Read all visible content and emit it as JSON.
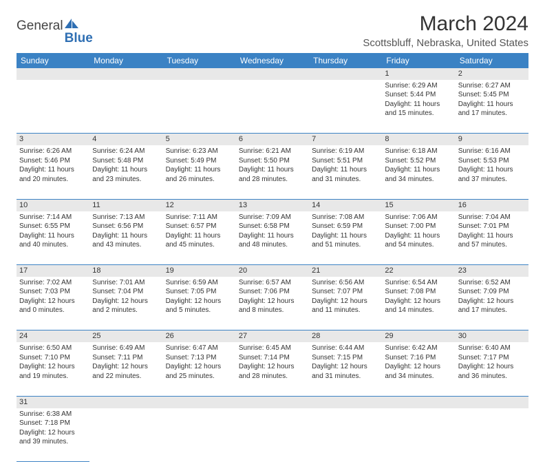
{
  "logo": {
    "part1": "General",
    "part2": "Blue"
  },
  "title": "March 2024",
  "location": "Scottsbluff, Nebraska, United States",
  "colors": {
    "header_bg": "#3b82c4",
    "header_text": "#ffffff",
    "daynum_bg": "#e8e8e8",
    "border": "#3b82c4",
    "text": "#333333",
    "logo_blue": "#2f6fb3"
  },
  "weekdays": [
    "Sunday",
    "Monday",
    "Tuesday",
    "Wednesday",
    "Thursday",
    "Friday",
    "Saturday"
  ],
  "weeks": [
    {
      "nums": [
        "",
        "",
        "",
        "",
        "",
        "1",
        "2"
      ],
      "cells": [
        null,
        null,
        null,
        null,
        null,
        {
          "sunrise": "Sunrise: 6:29 AM",
          "sunset": "Sunset: 5:44 PM",
          "daylight": "Daylight: 11 hours and 15 minutes."
        },
        {
          "sunrise": "Sunrise: 6:27 AM",
          "sunset": "Sunset: 5:45 PM",
          "daylight": "Daylight: 11 hours and 17 minutes."
        }
      ]
    },
    {
      "nums": [
        "3",
        "4",
        "5",
        "6",
        "7",
        "8",
        "9"
      ],
      "cells": [
        {
          "sunrise": "Sunrise: 6:26 AM",
          "sunset": "Sunset: 5:46 PM",
          "daylight": "Daylight: 11 hours and 20 minutes."
        },
        {
          "sunrise": "Sunrise: 6:24 AM",
          "sunset": "Sunset: 5:48 PM",
          "daylight": "Daylight: 11 hours and 23 minutes."
        },
        {
          "sunrise": "Sunrise: 6:23 AM",
          "sunset": "Sunset: 5:49 PM",
          "daylight": "Daylight: 11 hours and 26 minutes."
        },
        {
          "sunrise": "Sunrise: 6:21 AM",
          "sunset": "Sunset: 5:50 PM",
          "daylight": "Daylight: 11 hours and 28 minutes."
        },
        {
          "sunrise": "Sunrise: 6:19 AM",
          "sunset": "Sunset: 5:51 PM",
          "daylight": "Daylight: 11 hours and 31 minutes."
        },
        {
          "sunrise": "Sunrise: 6:18 AM",
          "sunset": "Sunset: 5:52 PM",
          "daylight": "Daylight: 11 hours and 34 minutes."
        },
        {
          "sunrise": "Sunrise: 6:16 AM",
          "sunset": "Sunset: 5:53 PM",
          "daylight": "Daylight: 11 hours and 37 minutes."
        }
      ]
    },
    {
      "nums": [
        "10",
        "11",
        "12",
        "13",
        "14",
        "15",
        "16"
      ],
      "cells": [
        {
          "sunrise": "Sunrise: 7:14 AM",
          "sunset": "Sunset: 6:55 PM",
          "daylight": "Daylight: 11 hours and 40 minutes."
        },
        {
          "sunrise": "Sunrise: 7:13 AM",
          "sunset": "Sunset: 6:56 PM",
          "daylight": "Daylight: 11 hours and 43 minutes."
        },
        {
          "sunrise": "Sunrise: 7:11 AM",
          "sunset": "Sunset: 6:57 PM",
          "daylight": "Daylight: 11 hours and 45 minutes."
        },
        {
          "sunrise": "Sunrise: 7:09 AM",
          "sunset": "Sunset: 6:58 PM",
          "daylight": "Daylight: 11 hours and 48 minutes."
        },
        {
          "sunrise": "Sunrise: 7:08 AM",
          "sunset": "Sunset: 6:59 PM",
          "daylight": "Daylight: 11 hours and 51 minutes."
        },
        {
          "sunrise": "Sunrise: 7:06 AM",
          "sunset": "Sunset: 7:00 PM",
          "daylight": "Daylight: 11 hours and 54 minutes."
        },
        {
          "sunrise": "Sunrise: 7:04 AM",
          "sunset": "Sunset: 7:01 PM",
          "daylight": "Daylight: 11 hours and 57 minutes."
        }
      ]
    },
    {
      "nums": [
        "17",
        "18",
        "19",
        "20",
        "21",
        "22",
        "23"
      ],
      "cells": [
        {
          "sunrise": "Sunrise: 7:02 AM",
          "sunset": "Sunset: 7:03 PM",
          "daylight": "Daylight: 12 hours and 0 minutes."
        },
        {
          "sunrise": "Sunrise: 7:01 AM",
          "sunset": "Sunset: 7:04 PM",
          "daylight": "Daylight: 12 hours and 2 minutes."
        },
        {
          "sunrise": "Sunrise: 6:59 AM",
          "sunset": "Sunset: 7:05 PM",
          "daylight": "Daylight: 12 hours and 5 minutes."
        },
        {
          "sunrise": "Sunrise: 6:57 AM",
          "sunset": "Sunset: 7:06 PM",
          "daylight": "Daylight: 12 hours and 8 minutes."
        },
        {
          "sunrise": "Sunrise: 6:56 AM",
          "sunset": "Sunset: 7:07 PM",
          "daylight": "Daylight: 12 hours and 11 minutes."
        },
        {
          "sunrise": "Sunrise: 6:54 AM",
          "sunset": "Sunset: 7:08 PM",
          "daylight": "Daylight: 12 hours and 14 minutes."
        },
        {
          "sunrise": "Sunrise: 6:52 AM",
          "sunset": "Sunset: 7:09 PM",
          "daylight": "Daylight: 12 hours and 17 minutes."
        }
      ]
    },
    {
      "nums": [
        "24",
        "25",
        "26",
        "27",
        "28",
        "29",
        "30"
      ],
      "cells": [
        {
          "sunrise": "Sunrise: 6:50 AM",
          "sunset": "Sunset: 7:10 PM",
          "daylight": "Daylight: 12 hours and 19 minutes."
        },
        {
          "sunrise": "Sunrise: 6:49 AM",
          "sunset": "Sunset: 7:11 PM",
          "daylight": "Daylight: 12 hours and 22 minutes."
        },
        {
          "sunrise": "Sunrise: 6:47 AM",
          "sunset": "Sunset: 7:13 PM",
          "daylight": "Daylight: 12 hours and 25 minutes."
        },
        {
          "sunrise": "Sunrise: 6:45 AM",
          "sunset": "Sunset: 7:14 PM",
          "daylight": "Daylight: 12 hours and 28 minutes."
        },
        {
          "sunrise": "Sunrise: 6:44 AM",
          "sunset": "Sunset: 7:15 PM",
          "daylight": "Daylight: 12 hours and 31 minutes."
        },
        {
          "sunrise": "Sunrise: 6:42 AM",
          "sunset": "Sunset: 7:16 PM",
          "daylight": "Daylight: 12 hours and 34 minutes."
        },
        {
          "sunrise": "Sunrise: 6:40 AM",
          "sunset": "Sunset: 7:17 PM",
          "daylight": "Daylight: 12 hours and 36 minutes."
        }
      ]
    },
    {
      "nums": [
        "31",
        "",
        "",
        "",
        "",
        "",
        ""
      ],
      "cells": [
        {
          "sunrise": "Sunrise: 6:38 AM",
          "sunset": "Sunset: 7:18 PM",
          "daylight": "Daylight: 12 hours and 39 minutes."
        },
        null,
        null,
        null,
        null,
        null,
        null
      ]
    }
  ]
}
